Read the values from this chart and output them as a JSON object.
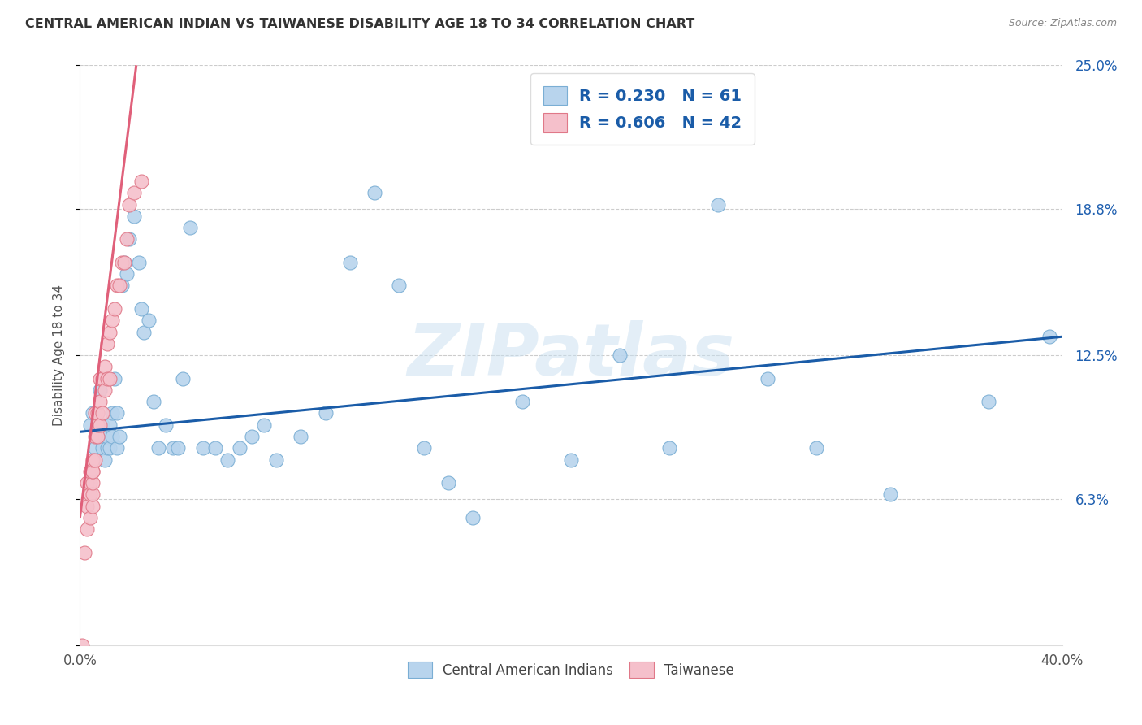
{
  "title": "CENTRAL AMERICAN INDIAN VS TAIWANESE DISABILITY AGE 18 TO 34 CORRELATION CHART",
  "source": "Source: ZipAtlas.com",
  "ylabel": "Disability Age 18 to 34",
  "x_min": 0.0,
  "x_max": 0.4,
  "y_min": 0.0,
  "y_max": 0.25,
  "blue_R": 0.23,
  "blue_N": 61,
  "pink_R": 0.606,
  "pink_N": 42,
  "blue_color": "#b8d4ed",
  "blue_edge_color": "#7aaed4",
  "blue_line_color": "#1a5ca8",
  "pink_color": "#f5c0cb",
  "pink_edge_color": "#e07888",
  "pink_line_color": "#e0607a",
  "watermark_text": "ZIPatlas",
  "y_ticks": [
    0.0,
    0.063,
    0.125,
    0.188,
    0.25
  ],
  "y_tick_labels": [
    "",
    "6.3%",
    "12.5%",
    "18.8%",
    "25.0%"
  ],
  "x_ticks": [
    0.0,
    0.4
  ],
  "x_tick_labels": [
    "0.0%",
    "40.0%"
  ],
  "blue_line_y0": 0.092,
  "blue_line_y1": 0.133,
  "pink_line_slope": 8.5,
  "pink_line_intercept": 0.055,
  "blue_points_x": [
    0.004,
    0.005,
    0.006,
    0.007,
    0.008,
    0.008,
    0.009,
    0.009,
    0.01,
    0.01,
    0.011,
    0.011,
    0.012,
    0.012,
    0.013,
    0.013,
    0.014,
    0.015,
    0.015,
    0.016,
    0.017,
    0.018,
    0.019,
    0.02,
    0.022,
    0.024,
    0.025,
    0.026,
    0.028,
    0.03,
    0.032,
    0.035,
    0.038,
    0.04,
    0.042,
    0.045,
    0.05,
    0.055,
    0.06,
    0.065,
    0.07,
    0.075,
    0.08,
    0.09,
    0.1,
    0.11,
    0.12,
    0.13,
    0.14,
    0.15,
    0.16,
    0.18,
    0.2,
    0.22,
    0.24,
    0.26,
    0.28,
    0.3,
    0.33,
    0.37,
    0.395
  ],
  "blue_points_y": [
    0.095,
    0.1,
    0.085,
    0.09,
    0.095,
    0.11,
    0.085,
    0.095,
    0.08,
    0.09,
    0.085,
    0.09,
    0.085,
    0.095,
    0.09,
    0.1,
    0.115,
    0.085,
    0.1,
    0.09,
    0.155,
    0.165,
    0.16,
    0.175,
    0.185,
    0.165,
    0.145,
    0.135,
    0.14,
    0.105,
    0.085,
    0.095,
    0.085,
    0.085,
    0.115,
    0.18,
    0.085,
    0.085,
    0.08,
    0.085,
    0.09,
    0.095,
    0.08,
    0.09,
    0.1,
    0.165,
    0.195,
    0.155,
    0.085,
    0.07,
    0.055,
    0.105,
    0.08,
    0.125,
    0.085,
    0.19,
    0.115,
    0.085,
    0.065,
    0.105,
    0.133
  ],
  "pink_points_x": [
    0.001,
    0.002,
    0.003,
    0.003,
    0.003,
    0.004,
    0.004,
    0.004,
    0.004,
    0.005,
    0.005,
    0.005,
    0.005,
    0.005,
    0.005,
    0.006,
    0.006,
    0.006,
    0.007,
    0.007,
    0.007,
    0.008,
    0.008,
    0.008,
    0.009,
    0.009,
    0.01,
    0.01,
    0.011,
    0.011,
    0.012,
    0.012,
    0.013,
    0.014,
    0.015,
    0.016,
    0.017,
    0.018,
    0.019,
    0.02,
    0.022,
    0.025
  ],
  "pink_points_y": [
    0.0,
    0.04,
    0.05,
    0.06,
    0.07,
    0.055,
    0.065,
    0.07,
    0.075,
    0.06,
    0.065,
    0.07,
    0.075,
    0.075,
    0.08,
    0.08,
    0.09,
    0.1,
    0.09,
    0.095,
    0.1,
    0.095,
    0.105,
    0.115,
    0.1,
    0.115,
    0.11,
    0.12,
    0.115,
    0.13,
    0.115,
    0.135,
    0.14,
    0.145,
    0.155,
    0.155,
    0.165,
    0.165,
    0.175,
    0.19,
    0.195,
    0.2
  ]
}
